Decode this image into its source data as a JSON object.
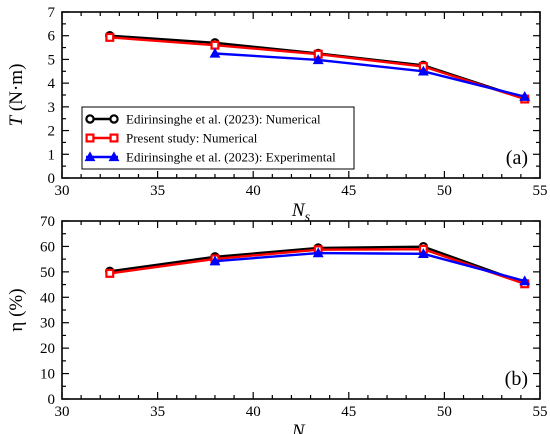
{
  "figure": {
    "legend": [
      "Edirinsinghe et al. (2023): Numerical",
      "Present study: Numerical",
      "Edirinsinghe et al. (2023): Experimental"
    ]
  },
  "chart_data": [
    {
      "type": "line",
      "panel_label": "(b)",
      "panel_label_position": "bottom-right",
      "xlabel": "N_s",
      "ylabel": "η (%)",
      "xlim": [
        30,
        55
      ],
      "ylim": [
        0,
        70
      ],
      "xticks": [
        30,
        35,
        40,
        45,
        50,
        55
      ],
      "yticks": [
        0,
        10,
        20,
        30,
        40,
        50,
        60,
        70
      ],
      "grid": false,
      "series": [
        {
          "name": "Edirinsinghe et al. (2023): Numerical",
          "color": "#000000",
          "marker": "circle",
          "x": [
            32.5,
            38,
            43.4,
            48.9,
            54.2
          ],
          "y": [
            50.2,
            55.9,
            59.4,
            59.9,
            45.6
          ]
        },
        {
          "name": "Present study: Numerical",
          "color": "#ff0000",
          "marker": "square",
          "x": [
            32.5,
            38,
            43.4,
            48.9,
            54.2
          ],
          "y": [
            49.4,
            55.1,
            58.7,
            58.9,
            45.3
          ]
        },
        {
          "name": "Edirinsinghe et al. (2023): Experimental",
          "color": "#0000ff",
          "marker": "triangle",
          "x": [
            38,
            43.4,
            48.9,
            54.2
          ],
          "y": [
            54.2,
            57.4,
            57.1,
            46.4
          ]
        }
      ]
    },
    {
      "type": "line",
      "panel_label": "(a)",
      "panel_label_position": "bottom-right",
      "xlabel": "N_s",
      "ylabel": "T (N·m)",
      "xlim": [
        30,
        55
      ],
      "ylim": [
        0,
        7
      ],
      "xticks": [
        30,
        35,
        40,
        45,
        50,
        55
      ],
      "yticks": [
        0,
        1,
        2,
        3,
        4,
        5,
        6,
        7
      ],
      "grid": false,
      "legend_position": "lower-left",
      "series": [
        {
          "name": "Edirinsinghe et al. (2023): Numerical",
          "color": "#000000",
          "marker": "circle",
          "x": [
            32.5,
            38,
            43.4,
            48.9,
            54.2
          ],
          "y": [
            6.0,
            5.7,
            5.25,
            4.75,
            3.35
          ]
        },
        {
          "name": "Present study: Numerical",
          "color": "#ff0000",
          "marker": "square",
          "x": [
            32.5,
            38,
            43.4,
            48.9,
            54.2
          ],
          "y": [
            5.93,
            5.6,
            5.22,
            4.7,
            3.33
          ]
        },
        {
          "name": "Edirinsinghe et al. (2023): Experimental",
          "color": "#0000ff",
          "marker": "triangle",
          "x": [
            38,
            43.4,
            48.9,
            54.2
          ],
          "y": [
            5.25,
            4.98,
            4.5,
            3.43
          ]
        }
      ]
    }
  ]
}
